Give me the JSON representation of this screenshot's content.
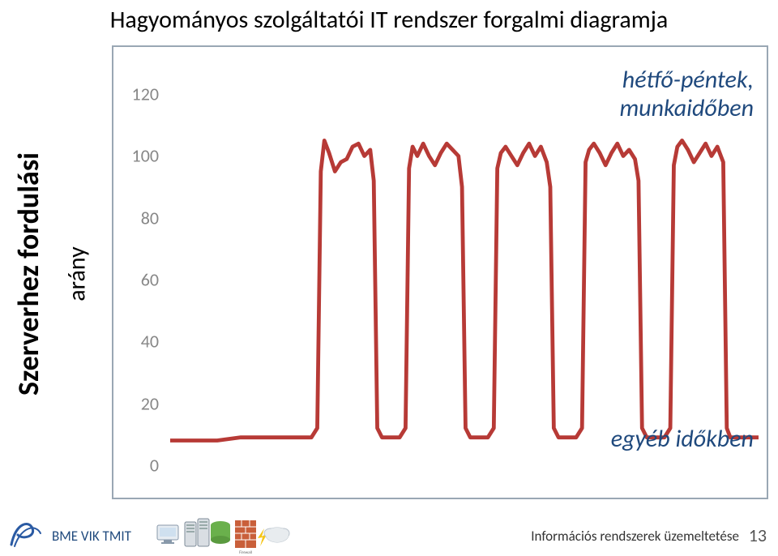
{
  "title": "Hagyományos szolgáltatói IT rendszer forgalmi diagramja",
  "ylabel_main": "Szerverhez fordulási",
  "ylabel_sub": "arány",
  "chart": {
    "type": "line",
    "line_color": "#b73a36",
    "line_width": 3.5,
    "background_color": "#ffffff",
    "border_color": "#9aa7b4",
    "tick_color": "#878787",
    "tick_fontsize": 22,
    "ylim": [
      0,
      130
    ],
    "yticks": [
      0,
      20,
      40,
      60,
      80,
      100,
      120
    ],
    "x_range": [
      0,
      100
    ],
    "series": [
      [
        0,
        8
      ],
      [
        6,
        8
      ],
      [
        8,
        8
      ],
      [
        12,
        9
      ],
      [
        24,
        9
      ],
      [
        25,
        12
      ],
      [
        25.6,
        95
      ],
      [
        26.2,
        105
      ],
      [
        27,
        101
      ],
      [
        28,
        95
      ],
      [
        29,
        98
      ],
      [
        30,
        99
      ],
      [
        31,
        103
      ],
      [
        32,
        104
      ],
      [
        33,
        100
      ],
      [
        34,
        102
      ],
      [
        34.6,
        92
      ],
      [
        35.2,
        12
      ],
      [
        36,
        9
      ],
      [
        39,
        9
      ],
      [
        40,
        12
      ],
      [
        40.6,
        96
      ],
      [
        41.2,
        103
      ],
      [
        42,
        100
      ],
      [
        43,
        104
      ],
      [
        44,
        100
      ],
      [
        45,
        97
      ],
      [
        46,
        101
      ],
      [
        47,
        104
      ],
      [
        48,
        102
      ],
      [
        49,
        100
      ],
      [
        49.6,
        90
      ],
      [
        50.2,
        12
      ],
      [
        51,
        9
      ],
      [
        54,
        9
      ],
      [
        55,
        12
      ],
      [
        55.6,
        96
      ],
      [
        56.2,
        101
      ],
      [
        57,
        103
      ],
      [
        58,
        100
      ],
      [
        59,
        97
      ],
      [
        60,
        101
      ],
      [
        61,
        104
      ],
      [
        62,
        100
      ],
      [
        63,
        103
      ],
      [
        64,
        98
      ],
      [
        64.6,
        90
      ],
      [
        65.2,
        12
      ],
      [
        66,
        9
      ],
      [
        69,
        9
      ],
      [
        70,
        12
      ],
      [
        70.6,
        98
      ],
      [
        71.2,
        102
      ],
      [
        72,
        104
      ],
      [
        73,
        101
      ],
      [
        74,
        97
      ],
      [
        75,
        101
      ],
      [
        76,
        104
      ],
      [
        77,
        100
      ],
      [
        78,
        102
      ],
      [
        79,
        99
      ],
      [
        79.6,
        92
      ],
      [
        80.2,
        12
      ],
      [
        81,
        9
      ],
      [
        84,
        9
      ],
      [
        85,
        12
      ],
      [
        85.6,
        97
      ],
      [
        86.2,
        103
      ],
      [
        87,
        105
      ],
      [
        88,
        102
      ],
      [
        89,
        98
      ],
      [
        90,
        101
      ],
      [
        91,
        104
      ],
      [
        92,
        100
      ],
      [
        93,
        103
      ],
      [
        94,
        98
      ],
      [
        94.6,
        12
      ],
      [
        95.2,
        9
      ],
      [
        100,
        9
      ]
    ],
    "annotation_top_1": "hétfő-péntek,",
    "annotation_top_2": "munkaidőben",
    "annotation_bottom": "egyéb időkben",
    "annotation_color": "#1f497d",
    "annotation_fontsize": 30
  },
  "footer": {
    "left": "BME VIK TMIT",
    "right": "Információs rendszerek üzemeltetése",
    "page": "13",
    "left_color": "#1f497d"
  }
}
